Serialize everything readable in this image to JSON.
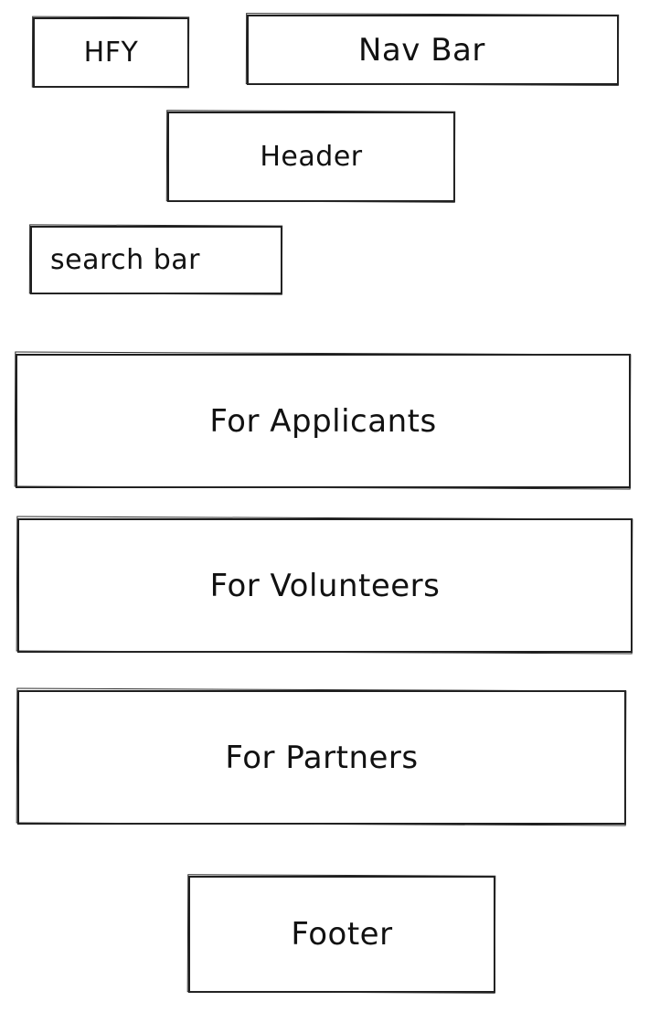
{
  "wireframe": {
    "logo": "HFY",
    "nav_bar": "Nav Bar",
    "header": "Header",
    "search_bar": "search bar",
    "sections": [
      "For Applicants",
      "For Volunteers",
      "For Partners"
    ],
    "footer": "Footer"
  },
  "colors": {
    "stroke": "#1e1e1e",
    "background": "#ffffff"
  }
}
